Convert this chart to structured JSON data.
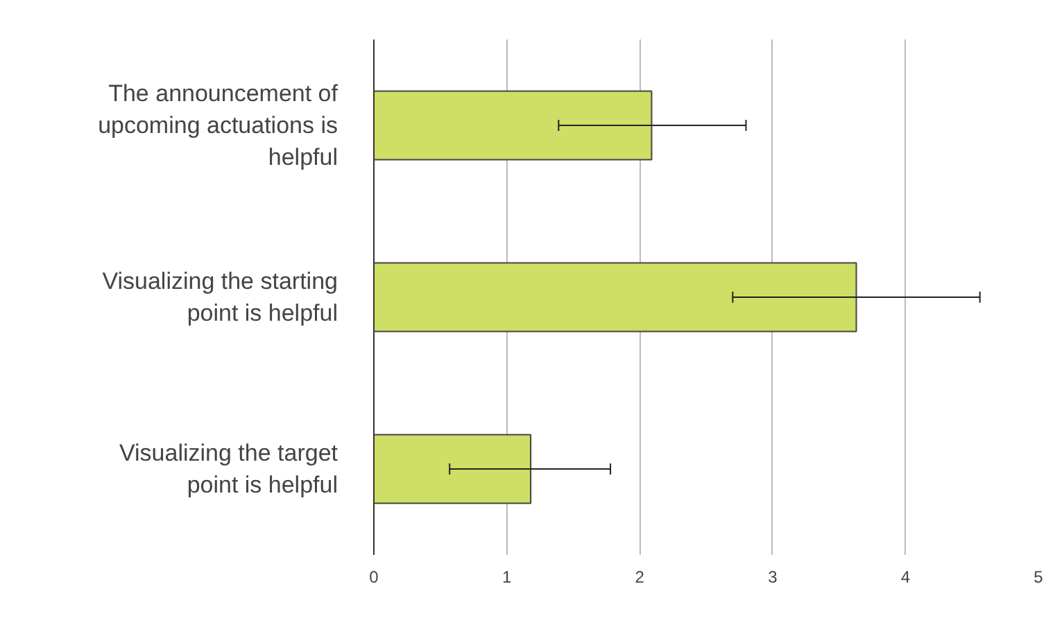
{
  "chart_data": {
    "type": "bar",
    "orientation": "horizontal",
    "categories": [
      "The announcement of upcoming actuations is helpful",
      "Visualizing the starting point is helpful",
      "Visualizing the target point is helpful"
    ],
    "values": [
      2.09,
      3.63,
      1.18
    ],
    "errors": [
      [
        1.39,
        2.8
      ],
      [
        2.7,
        4.56
      ],
      [
        0.57,
        1.78
      ]
    ],
    "color": "#cfde64",
    "xlim": [
      0,
      5
    ],
    "xticks": [
      0,
      1,
      2,
      3,
      4,
      5
    ],
    "grid": "x"
  }
}
